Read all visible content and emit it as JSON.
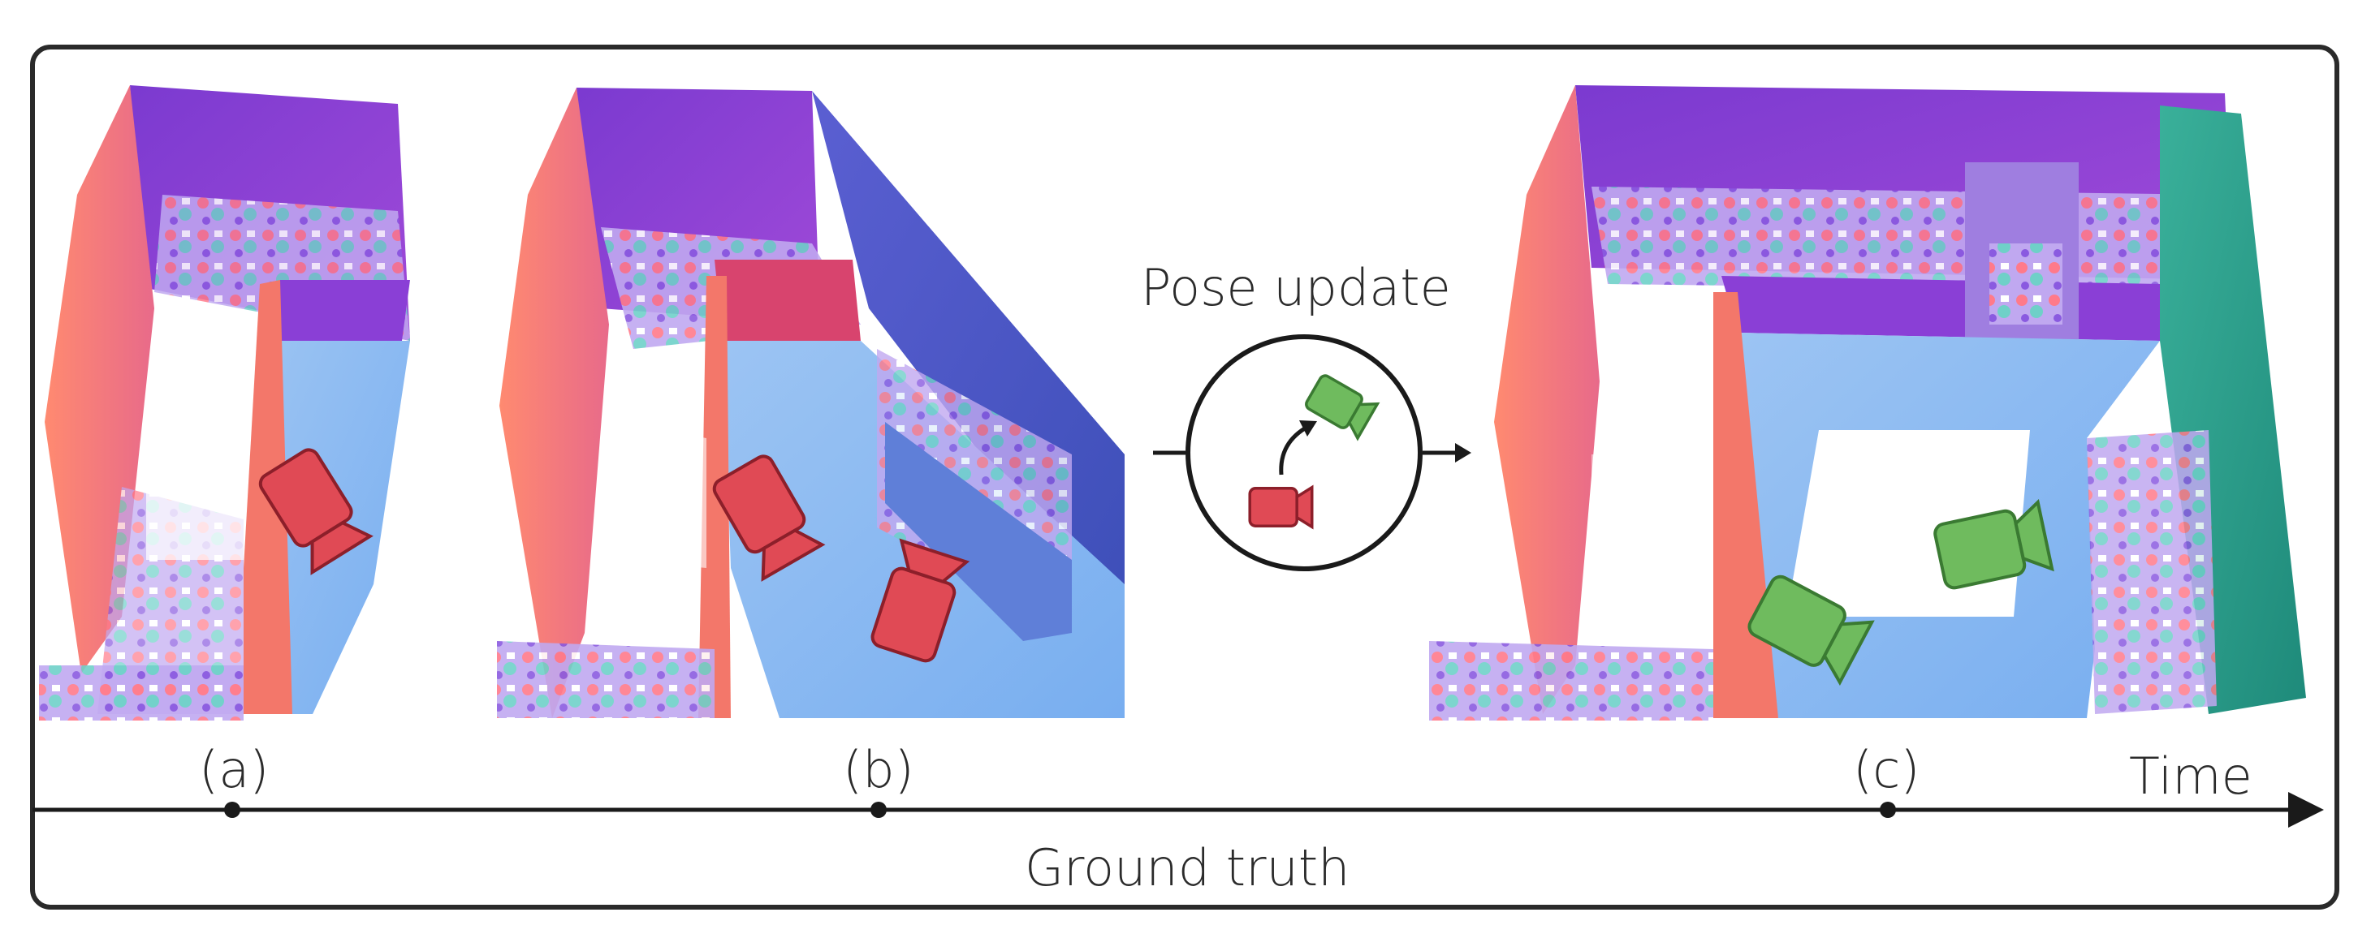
{
  "figure": {
    "pose_update_label": "Pose update",
    "time_label": "Time",
    "ground_truth_label": "Ground truth",
    "timeline_markers": [
      {
        "label": "(a)"
      },
      {
        "label": "(b)"
      },
      {
        "label": "(c)"
      }
    ],
    "panels": [
      {
        "id": "a",
        "camera_color": "#e04a55",
        "camera_count": 1
      },
      {
        "id": "b",
        "camera_color": "#e04a55",
        "camera_count": 2
      },
      {
        "id": "c",
        "camera_color": "#6fbb5e",
        "camera_count": 2
      }
    ],
    "colors": {
      "camera_before": "#e04a55",
      "camera_after": "#6fbb5e",
      "surface_blue": "#86b8f0",
      "surface_purple": "#8a3fd6",
      "surface_orange": "#f07868",
      "surface_teal": "#2a9a8a"
    }
  }
}
